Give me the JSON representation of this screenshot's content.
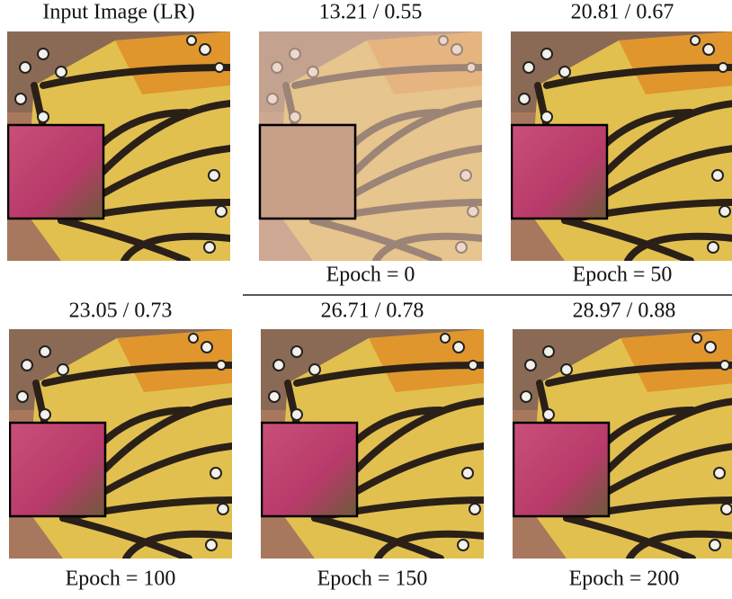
{
  "panels": [
    {
      "title": "Input Image (LR)"
    },
    {
      "title": "13.21 / 0.55",
      "caption": "Epoch = 0"
    },
    {
      "title": "20.81 / 0.67",
      "caption": "Epoch = 50"
    },
    {
      "title": "23.05 / 0.73",
      "caption": "Epoch = 100"
    },
    {
      "title": "26.71 / 0.78",
      "caption": "Epoch = 150"
    },
    {
      "title": "28.97 / 0.88",
      "caption": "Epoch = 200"
    }
  ]
}
